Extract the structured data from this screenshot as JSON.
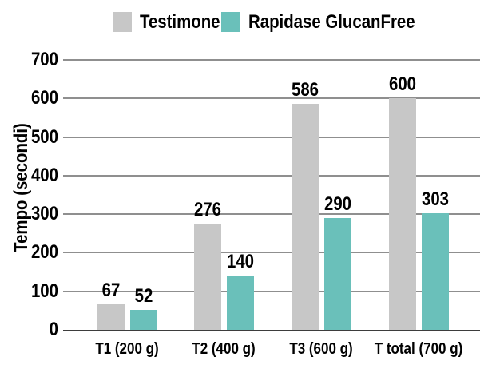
{
  "chart_data": {
    "type": "bar",
    "title": "",
    "xlabel": "",
    "ylabel": "Tempo (secondi)",
    "ylim": [
      0,
      700
    ],
    "yticks": [
      0,
      100,
      200,
      300,
      400,
      500,
      600,
      700
    ],
    "grid": true,
    "legend_position": "top",
    "value_labels": true,
    "categories": [
      "T1 (200 g)",
      "T2 (400 g)",
      "T3 (600 g)",
      "T total (700 g)"
    ],
    "series": [
      {
        "name": "Testimone",
        "color": "#c7c7c7",
        "values": [
          67,
          276,
          586,
          600
        ]
      },
      {
        "name": "Rapidase GlucanFree",
        "color": "#6ac0ba",
        "values": [
          52,
          140,
          290,
          303
        ]
      }
    ]
  },
  "colors": {
    "background": "#ffffff",
    "gridline": "#8f8f8f",
    "axis_line": "#3d3d3d",
    "text": "#000000"
  }
}
